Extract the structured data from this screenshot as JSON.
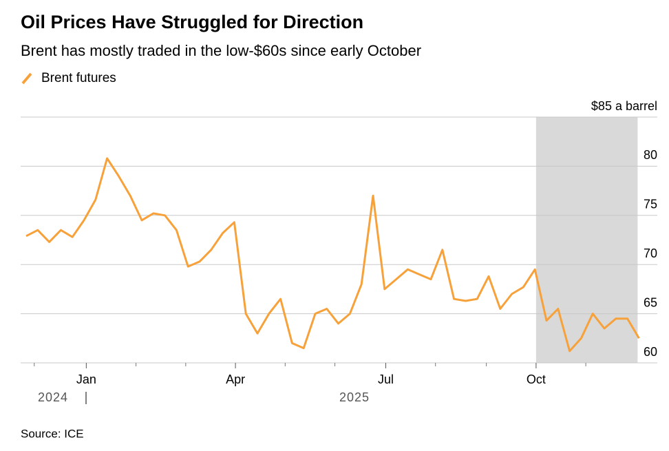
{
  "chart_data": {
    "type": "line",
    "title": "Oil Prices Have Struggled for Direction",
    "subtitle": "Brent has mostly traded in the low-$60s since early October",
    "source": "Source: ICE",
    "year_labels": [
      "2024",
      "2025"
    ],
    "series": [
      {
        "name": "Brent futures",
        "color": "#f7a13a",
        "values": [
          72.9,
          73.5,
          72.3,
          73.5,
          72.8,
          74.5,
          76.6,
          80.8,
          79.0,
          77.0,
          74.5,
          75.2,
          75.0,
          73.5,
          69.8,
          70.3,
          71.5,
          73.2,
          74.3,
          65.0,
          63.0,
          65.0,
          66.5,
          62.0,
          61.5,
          65.0,
          65.5,
          64.0,
          65.0,
          68.0,
          77.0,
          67.5,
          68.5,
          69.5,
          69.0,
          68.5,
          71.5,
          66.5,
          66.3,
          66.5,
          68.8,
          65.5,
          67.0,
          67.7,
          69.5,
          64.3,
          65.5,
          61.2,
          62.5,
          65.0,
          63.5,
          64.5,
          64.5,
          62.5
        ]
      }
    ],
    "xlim": [
      0,
      53
    ],
    "xticks": [
      {
        "value": 5.2,
        "label": "Jan"
      },
      {
        "value": 18.1,
        "label": "Apr"
      },
      {
        "value": 31.1,
        "label": "Jul"
      },
      {
        "value": 44.1,
        "label": "Oct"
      }
    ],
    "xminor": [
      0.7,
      9.5,
      13.8,
      22.4,
      26.7,
      35.4,
      39.8,
      48.4
    ],
    "shade": [
      44.1,
      53
    ],
    "ylim": [
      60,
      85
    ],
    "yticks": [
      60,
      65,
      70,
      75,
      80,
      {
        "value": 85,
        "label": "$85 a barrel"
      }
    ],
    "grid": true
  }
}
